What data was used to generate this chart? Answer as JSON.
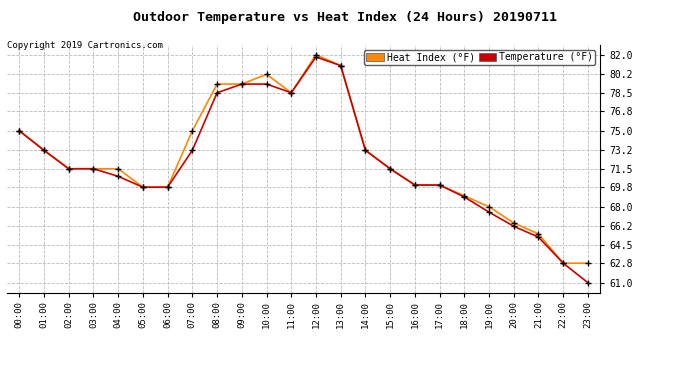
{
  "title": "Outdoor Temperature vs Heat Index (24 Hours) 20190711",
  "copyright": "Copyright 2019 Cartronics.com",
  "background_color": "#ffffff",
  "plot_bg_color": "#ffffff",
  "grid_color": "#bbbbbb",
  "yticks": [
    61.0,
    62.8,
    64.5,
    66.2,
    68.0,
    69.8,
    71.5,
    73.2,
    75.0,
    76.8,
    78.5,
    80.2,
    82.0
  ],
  "ylim": [
    60.1,
    82.9
  ],
  "xticks": [
    "00:00",
    "01:00",
    "02:00",
    "03:00",
    "04:00",
    "05:00",
    "06:00",
    "07:00",
    "08:00",
    "09:00",
    "10:00",
    "11:00",
    "12:00",
    "13:00",
    "14:00",
    "15:00",
    "16:00",
    "17:00",
    "18:00",
    "19:00",
    "20:00",
    "21:00",
    "22:00",
    "23:00"
  ],
  "heat_index_color": "#ff8800",
  "temperature_color": "#cc0000",
  "marker_color": "#000000",
  "heat_index_label": "Heat Index (°F)",
  "temperature_label": "Temperature (°F)",
  "heat_index": [
    75.0,
    73.2,
    71.5,
    71.5,
    71.5,
    69.8,
    69.8,
    75.0,
    79.3,
    79.3,
    80.2,
    78.5,
    82.0,
    81.0,
    73.2,
    71.5,
    70.0,
    70.0,
    69.0,
    68.0,
    66.5,
    65.5,
    62.8,
    62.8
  ],
  "temperature": [
    75.0,
    73.2,
    71.5,
    71.5,
    70.8,
    69.8,
    69.8,
    73.2,
    78.5,
    79.3,
    79.3,
    78.5,
    81.8,
    81.0,
    73.2,
    71.5,
    70.0,
    70.0,
    68.9,
    67.5,
    66.2,
    65.2,
    62.8,
    61.0
  ]
}
